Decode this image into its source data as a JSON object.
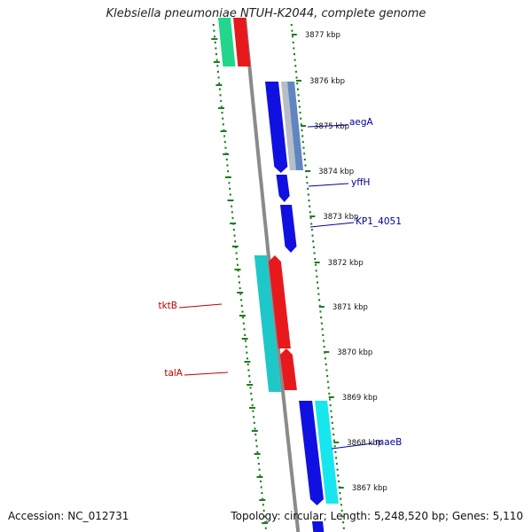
{
  "title": "Klebsiella pneumoniae NTUH-K2044, complete genome",
  "footer": {
    "accession": "Accession: NC_012731",
    "summary": "Topology: circular; Length: 5,248,520 bp; Genes: 5,110"
  },
  "colors": {
    "backbone": "#8a8a8a",
    "tick": "#1e7d1e",
    "forward_gene": "#e8191c",
    "reverse_gene": "#1010e0",
    "label_red": "#bb0000",
    "label_blue": "#000099",
    "cyan_gene": "#1fc8c8",
    "green_gene": "#22d68c"
  },
  "ticks": [
    {
      "label": "3877 kbp"
    },
    {
      "label": "3876 kbp"
    },
    {
      "label": "3875 kbp"
    },
    {
      "label": "3874 kbp"
    },
    {
      "label": "3873 kbp"
    },
    {
      "label": "3872 kbp"
    },
    {
      "label": "3871 kbp"
    },
    {
      "label": "3870 kbp"
    },
    {
      "label": "3869 kbp"
    },
    {
      "label": "3868 kbp"
    },
    {
      "label": "3867 kbp"
    }
  ],
  "gene_labels": [
    {
      "name": "aegA",
      "side": "right",
      "color_key": "label_blue"
    },
    {
      "name": "yffH",
      "side": "right",
      "color_key": "label_blue"
    },
    {
      "name": "KP1_4051",
      "side": "right",
      "color_key": "label_blue"
    },
    {
      "name": "tktB",
      "side": "left",
      "color_key": "label_red"
    },
    {
      "name": "talA",
      "side": "left",
      "color_key": "label_red"
    },
    {
      "name": "maeB",
      "side": "right",
      "color_key": "label_blue"
    }
  ]
}
